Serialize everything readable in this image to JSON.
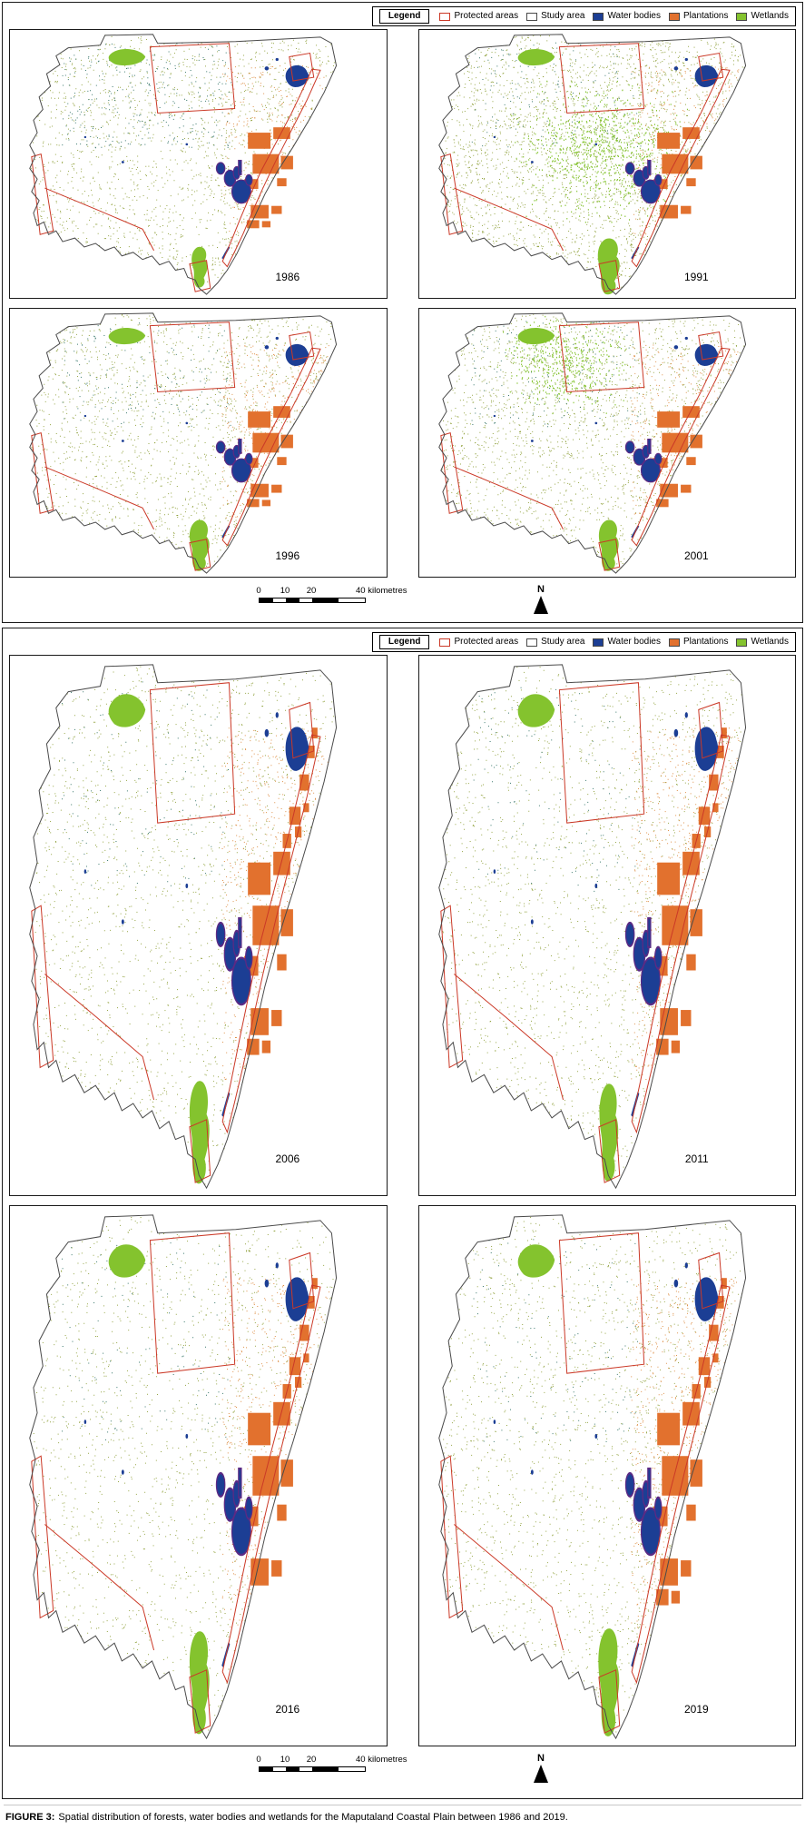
{
  "figure": {
    "caption_label": "FIGURE 3:",
    "caption_text": "Spatial distribution of forests, water bodies and wetlands for the Maputaland Coastal Plain between 1986 and 2019."
  },
  "legend": {
    "title": "Legend",
    "items": [
      {
        "label": "Protected areas",
        "style": "outline",
        "color": "#cb3927"
      },
      {
        "label": "Study area",
        "style": "outline",
        "color": "#4a4a4a"
      },
      {
        "label": "Water bodies",
        "style": "fill",
        "color": "#1c3e94"
      },
      {
        "label": "Plantations",
        "style": "fill",
        "color": "#e2712e"
      },
      {
        "label": "Wetlands",
        "style": "fill",
        "color": "#84c32e"
      }
    ]
  },
  "scale_bar": {
    "labels": [
      "0",
      "10",
      "20",
      "40 kilometres"
    ],
    "north_label": "N"
  },
  "colors": {
    "protected": "#cb3927",
    "study_outline": "#4a4a4a",
    "water": "#1c3e94",
    "lake_edge": "#5b2a84",
    "plantation": "#e2712e",
    "wetland": "#84c32e",
    "speckle_green": "#8fa03a",
    "speckle_teal": "#2d6f63",
    "speckle_orange": "#dc8a3e"
  },
  "panels": [
    {
      "maps": [
        {
          "year": "1986",
          "seed": 11,
          "green": 1500,
          "teal": 300,
          "orange": 260,
          "cluster": "none",
          "plant": 1.0,
          "north": 0,
          "wet": 0.8
        },
        {
          "year": "1991",
          "seed": 23,
          "green": 2300,
          "teal": 150,
          "orange": 280,
          "cluster": "center",
          "plant": 0.75,
          "north": 0,
          "wet": 1.1
        },
        {
          "year": "1996",
          "seed": 37,
          "green": 1500,
          "teal": 170,
          "orange": 330,
          "cluster": "none",
          "plant": 0.95,
          "north": 0,
          "wet": 1.0
        },
        {
          "year": "2001",
          "seed": 41,
          "green": 1800,
          "teal": 180,
          "orange": 300,
          "cluster": "top",
          "plant": 0.85,
          "north": 0,
          "wet": 1.0
        }
      ]
    },
    {
      "maps": [
        {
          "year": "2006",
          "seed": 53,
          "green": 1700,
          "teal": 130,
          "orange": 520,
          "cluster": "none",
          "plant": 1.0,
          "north": 1,
          "wet": 1.0
        },
        {
          "year": "2011",
          "seed": 67,
          "green": 1800,
          "teal": 130,
          "orange": 520,
          "cluster": "none",
          "plant": 0.95,
          "north": 1,
          "wet": 0.95
        },
        {
          "year": "2016",
          "seed": 79,
          "green": 1500,
          "teal": 110,
          "orange": 480,
          "cluster": "none",
          "plant": 0.8,
          "north": 1,
          "wet": 1.0
        },
        {
          "year": "2019",
          "seed": 97,
          "green": 1900,
          "teal": 130,
          "orange": 620,
          "cluster": "none",
          "plant": 0.95,
          "north": 1,
          "wet": 1.05
        }
      ]
    }
  ]
}
